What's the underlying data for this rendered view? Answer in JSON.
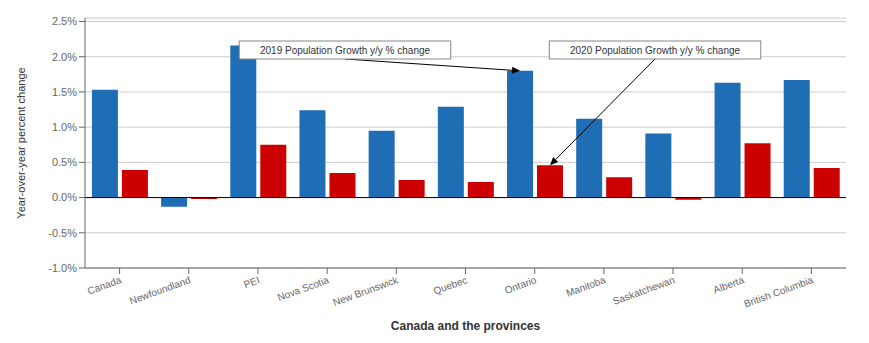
{
  "chart_data": {
    "type": "bar",
    "categories": [
      "Canada",
      "Newfoundland",
      "PEI",
      "Nova Scotia",
      "New Brunswick",
      "Quebec",
      "Ontario",
      "Manitoba",
      "Saskatchewan",
      "Alberta",
      "British Columbia"
    ],
    "series": [
      {
        "color": "#1f6db5",
        "values": [
          1.53,
          -0.13,
          2.16,
          1.24,
          0.95,
          1.29,
          1.8,
          1.12,
          0.91,
          1.63,
          1.67
        ]
      },
      {
        "color": "#cc0000",
        "values": [
          0.39,
          -0.02,
          0.75,
          0.35,
          0.25,
          0.22,
          0.46,
          0.29,
          -0.03,
          0.77,
          0.42
        ]
      }
    ],
    "annotations": [
      "2019 Population Growth y/y % change",
      "2020 Population Growth y/y % change"
    ],
    "xlabel": "Canada and the provinces",
    "ylabel": "Year-over-year percent change",
    "ylim": [
      -1.0,
      2.55
    ],
    "yticks": [
      {
        "value": -1.0,
        "label": "-1.0%"
      },
      {
        "value": -0.5,
        "label": "-0.5%"
      },
      {
        "value": 0.0,
        "label": "0.0%"
      },
      {
        "value": 0.5,
        "label": "0.5%"
      },
      {
        "value": 1.0,
        "label": "1.0%"
      },
      {
        "value": 1.5,
        "label": "1.5%"
      },
      {
        "value": 2.0,
        "label": "2.0%"
      },
      {
        "value": 2.5,
        "label": "2.5%"
      }
    ],
    "grid": true
  }
}
